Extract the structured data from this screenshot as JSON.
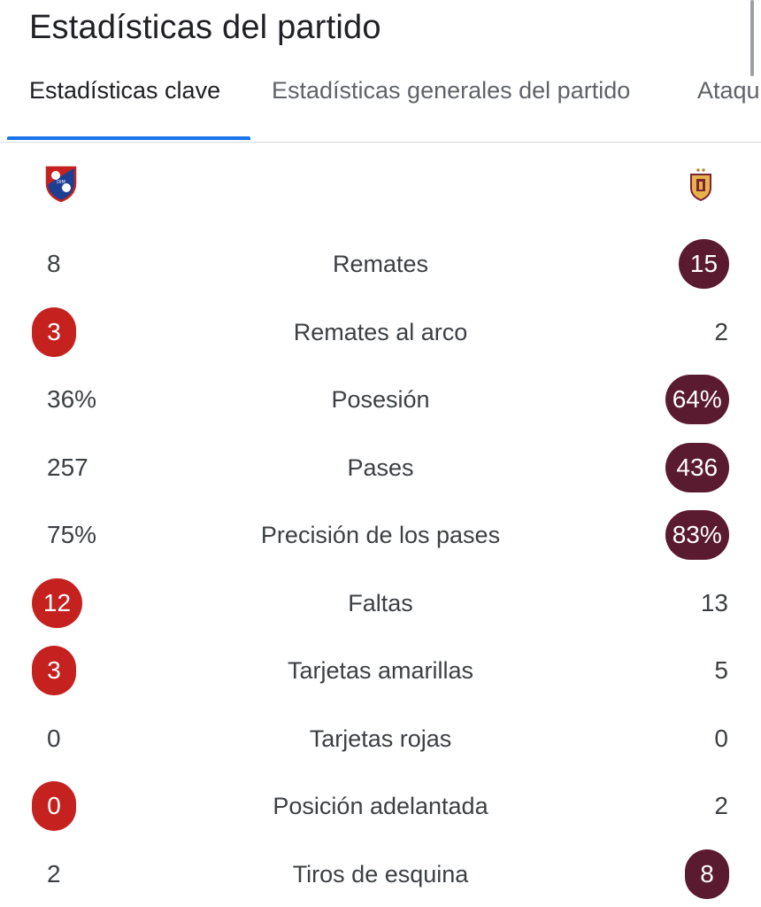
{
  "page": {
    "title": "Estadísticas del partido"
  },
  "tabs": [
    {
      "label": "Estadísticas clave",
      "active": true
    },
    {
      "label": "Estadísticas generales del partido",
      "active": false
    },
    {
      "label": "Ataqu",
      "active": false
    }
  ],
  "teams": {
    "home": {
      "logo": "dim-shield-icon",
      "logo_text": "DIM",
      "color": "#c5221f"
    },
    "away": {
      "logo": "tolima-shield-icon",
      "color": "#5a1a2f"
    }
  },
  "stats": [
    {
      "label": "Remates",
      "home": "8",
      "away": "15",
      "leader": "away"
    },
    {
      "label": "Remates al arco",
      "home": "3",
      "away": "2",
      "leader": "home"
    },
    {
      "label": "Posesión",
      "home": "36%",
      "away": "64%",
      "leader": "away"
    },
    {
      "label": "Pases",
      "home": "257",
      "away": "436",
      "leader": "away"
    },
    {
      "label": "Precisión de los pases",
      "home": "75%",
      "away": "83%",
      "leader": "away"
    },
    {
      "label": "Faltas",
      "home": "12",
      "away": "13",
      "leader": "home"
    },
    {
      "label": "Tarjetas amarillas",
      "home": "3",
      "away": "5",
      "leader": "home"
    },
    {
      "label": "Tarjetas rojas",
      "home": "0",
      "away": "0",
      "leader": "none"
    },
    {
      "label": "Posición adelantada",
      "home": "0",
      "away": "2",
      "leader": "home"
    },
    {
      "label": "Tiros de esquina",
      "home": "2",
      "away": "8",
      "leader": "away"
    }
  ]
}
